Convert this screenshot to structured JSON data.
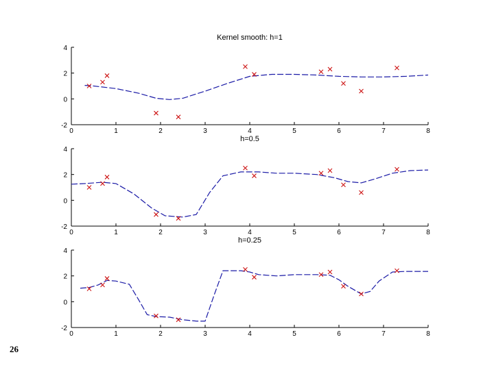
{
  "slide": {
    "page_number": "26"
  },
  "colors": {
    "curve": "#1a1aa6",
    "points": "#cc1111",
    "axis": "#000000"
  },
  "chart_data": [
    {
      "type": "line",
      "title": "Kernel smooth: h=1",
      "xlim": [
        0,
        8
      ],
      "ylim": [
        -2,
        4
      ],
      "xticks": [
        "0",
        "1",
        "2",
        "3",
        "4",
        "5",
        "6",
        "7",
        "8"
      ],
      "yticks": [
        "-2",
        "0",
        "2",
        "4"
      ],
      "line_style": "dashed",
      "series": [
        {
          "type": "line",
          "x": [
            0.3,
            0.5,
            1.0,
            1.5,
            1.9,
            2.2,
            2.5,
            3.0,
            3.5,
            4.0,
            4.5,
            5.0,
            5.5,
            6.0,
            6.5,
            7.0,
            7.5,
            8.0
          ],
          "values": [
            1.05,
            1.0,
            0.8,
            0.45,
            0.05,
            -0.05,
            0.05,
            0.6,
            1.2,
            1.75,
            1.9,
            1.9,
            1.85,
            1.75,
            1.7,
            1.7,
            1.75,
            1.85
          ]
        },
        {
          "type": "scatter",
          "x": [
            0.4,
            0.7,
            0.8,
            1.9,
            2.4,
            3.9,
            4.1,
            5.6,
            5.8,
            6.1,
            6.5,
            7.3
          ],
          "values": [
            1.0,
            1.3,
            1.8,
            -1.1,
            -1.4,
            2.5,
            1.9,
            2.1,
            2.3,
            1.2,
            0.6,
            2.4
          ]
        }
      ]
    },
    {
      "type": "line",
      "title": "h=0.5",
      "xlim": [
        0,
        8
      ],
      "ylim": [
        -2,
        4
      ],
      "xticks": [
        "0",
        "1",
        "2",
        "3",
        "4",
        "5",
        "6",
        "7",
        "8"
      ],
      "yticks": [
        "-2",
        "0",
        "2",
        "4"
      ],
      "line_style": "dashed",
      "series": [
        {
          "type": "line",
          "x": [
            0.0,
            0.3,
            0.7,
            1.0,
            1.4,
            1.8,
            2.1,
            2.5,
            2.8,
            3.1,
            3.4,
            3.8,
            4.2,
            4.6,
            5.0,
            5.5,
            5.9,
            6.2,
            6.5,
            6.8,
            7.2,
            7.6,
            8.0
          ],
          "values": [
            1.25,
            1.3,
            1.4,
            1.3,
            0.5,
            -0.6,
            -1.2,
            -1.3,
            -1.1,
            0.6,
            1.9,
            2.2,
            2.2,
            2.1,
            2.1,
            2.0,
            1.75,
            1.45,
            1.35,
            1.65,
            2.1,
            2.3,
            2.35
          ]
        },
        {
          "type": "scatter",
          "x": [
            0.4,
            0.7,
            0.8,
            1.9,
            2.4,
            3.9,
            4.1,
            5.6,
            5.8,
            6.1,
            6.5,
            7.3
          ],
          "values": [
            1.0,
            1.3,
            1.8,
            -1.1,
            -1.4,
            2.5,
            1.9,
            2.1,
            2.3,
            1.2,
            0.6,
            2.4
          ]
        }
      ]
    },
    {
      "type": "line",
      "title": "h=0.25",
      "xlim": [
        0,
        8
      ],
      "ylim": [
        -2,
        4
      ],
      "xticks": [
        "0",
        "1",
        "2",
        "3",
        "4",
        "5",
        "6",
        "7",
        "8"
      ],
      "yticks": [
        "-2",
        "0",
        "2",
        "4"
      ],
      "line_style": "dashed",
      "series": [
        {
          "type": "line",
          "x": [
            0.2,
            0.4,
            0.6,
            0.8,
            1.0,
            1.3,
            1.5,
            1.7,
            1.9,
            2.2,
            2.5,
            2.8,
            3.0,
            3.2,
            3.4,
            3.8,
            4.0,
            4.2,
            4.6,
            5.0,
            5.5,
            5.8,
            6.0,
            6.2,
            6.5,
            6.7,
            6.9,
            7.2,
            7.5,
            8.0
          ],
          "values": [
            1.05,
            1.1,
            1.3,
            1.65,
            1.6,
            1.35,
            0.2,
            -1.0,
            -1.15,
            -1.2,
            -1.4,
            -1.5,
            -1.5,
            0.5,
            2.4,
            2.4,
            2.3,
            2.1,
            2.0,
            2.1,
            2.1,
            2.05,
            1.7,
            1.2,
            0.6,
            0.8,
            1.6,
            2.3,
            2.35,
            2.35
          ]
        },
        {
          "type": "scatter",
          "x": [
            0.4,
            0.7,
            0.8,
            1.9,
            2.4,
            3.9,
            4.1,
            5.6,
            5.8,
            6.1,
            6.5,
            7.3
          ],
          "values": [
            1.0,
            1.3,
            1.8,
            -1.1,
            -1.4,
            2.5,
            1.9,
            2.1,
            2.3,
            1.2,
            0.6,
            2.4
          ]
        }
      ]
    }
  ]
}
